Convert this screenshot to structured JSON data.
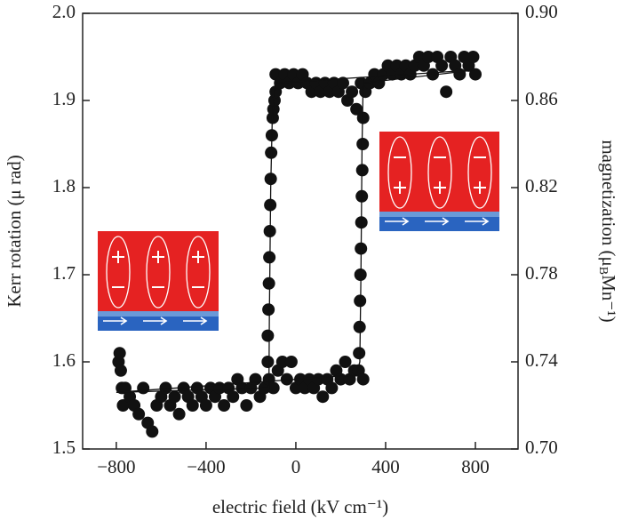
{
  "chart_data": {
    "type": "scatter",
    "xlabel": "electric field (kV cm⁻¹)",
    "ylabel": "Kerr rotation (μ rad)",
    "y2label_parts": [
      "magnetization (μ",
      "B",
      "Mn⁻¹)"
    ],
    "xlim": [
      -950,
      990
    ],
    "xticks": [
      {
        "value": -800,
        "label": "−800"
      },
      {
        "value": -400,
        "label": "−400"
      },
      0,
      400,
      800
    ],
    "ylim": [
      1.5,
      2.0
    ],
    "yticks": [
      {
        "value": 1.5,
        "label": "1.5"
      },
      1.6,
      1.7,
      1.8,
      1.9,
      {
        "value": 2.0,
        "label": "2.0"
      }
    ],
    "y2lim": [
      0.7,
      0.9
    ],
    "y2ticks": [
      {
        "value": 0.7,
        "label": "0.70"
      },
      0.74,
      0.78,
      0.82,
      0.86,
      {
        "value": 0.9,
        "label": "0.90"
      }
    ],
    "grid": false,
    "series": [
      {
        "color": "#111111",
        "marker": "circle",
        "x": [
          -790,
          -785,
          -780,
          -775,
          -770,
          -760,
          -740,
          -720,
          -700,
          -680,
          -660,
          -640,
          -620,
          -600,
          -580,
          -560,
          -540,
          -520,
          -500,
          -480,
          -460,
          -440,
          -420,
          -400,
          -380,
          -360,
          -340,
          -320,
          -300,
          -280,
          -260,
          -240,
          -220,
          -200,
          -180,
          -160,
          -140,
          -120,
          -100,
          -80,
          -60,
          -40,
          -20,
          0,
          20,
          40,
          60,
          80,
          100,
          120,
          140,
          160,
          180,
          200,
          220,
          240,
          260,
          280,
          300,
          -125,
          -125,
          -122,
          -120,
          -118,
          -116,
          -114,
          -112,
          -110,
          -107,
          -103,
          -100,
          -95,
          -90,
          -90,
          -70,
          -50,
          -30,
          -10,
          10,
          30,
          50,
          70,
          90,
          110,
          130,
          150,
          170,
          190,
          210,
          230,
          250,
          270,
          290,
          310,
          330,
          350,
          370,
          390,
          410,
          430,
          450,
          470,
          490,
          510,
          530,
          550,
          570,
          590,
          610,
          630,
          650,
          670,
          690,
          710,
          730,
          750,
          770,
          790,
          800,
          300,
          298,
          296,
          294,
          292,
          290,
          288,
          286,
          284,
          282
        ],
        "values": [
          1.6,
          1.61,
          1.59,
          1.57,
          1.55,
          1.57,
          1.56,
          1.55,
          1.54,
          1.57,
          1.53,
          1.52,
          1.55,
          1.56,
          1.57,
          1.55,
          1.56,
          1.54,
          1.57,
          1.56,
          1.55,
          1.57,
          1.56,
          1.55,
          1.57,
          1.56,
          1.57,
          1.55,
          1.57,
          1.56,
          1.58,
          1.57,
          1.55,
          1.57,
          1.58,
          1.56,
          1.57,
          1.58,
          1.57,
          1.59,
          1.6,
          1.58,
          1.6,
          1.57,
          1.58,
          1.57,
          1.58,
          1.57,
          1.58,
          1.56,
          1.58,
          1.57,
          1.59,
          1.58,
          1.6,
          1.58,
          1.59,
          1.59,
          1.58,
          1.6,
          1.63,
          1.66,
          1.69,
          1.72,
          1.75,
          1.78,
          1.81,
          1.84,
          1.86,
          1.88,
          1.89,
          1.9,
          1.91,
          1.93,
          1.92,
          1.93,
          1.92,
          1.93,
          1.92,
          1.93,
          1.92,
          1.91,
          1.92,
          1.91,
          1.92,
          1.91,
          1.92,
          1.91,
          1.92,
          1.9,
          1.91,
          1.89,
          1.92,
          1.91,
          1.92,
          1.93,
          1.92,
          1.93,
          1.94,
          1.93,
          1.94,
          1.93,
          1.94,
          1.93,
          1.94,
          1.95,
          1.94,
          1.95,
          1.93,
          1.95,
          1.94,
          1.91,
          1.95,
          1.94,
          1.93,
          1.95,
          1.94,
          1.95,
          1.93,
          1.88,
          1.85,
          1.82,
          1.79,
          1.76,
          1.73,
          1.7,
          1.67,
          1.64,
          1.61
        ]
      },
      {
        "color": "#111111",
        "marker": "line",
        "x": [
          -800,
          -120,
          -118,
          -112,
          -105,
          -90,
          800,
          300,
          295,
          290,
          285,
          270,
          -800
        ],
        "values": [
          1.565,
          1.57,
          1.65,
          1.8,
          1.88,
          1.92,
          1.935,
          1.92,
          1.85,
          1.7,
          1.6,
          1.585,
          1.565
        ]
      }
    ]
  }
}
